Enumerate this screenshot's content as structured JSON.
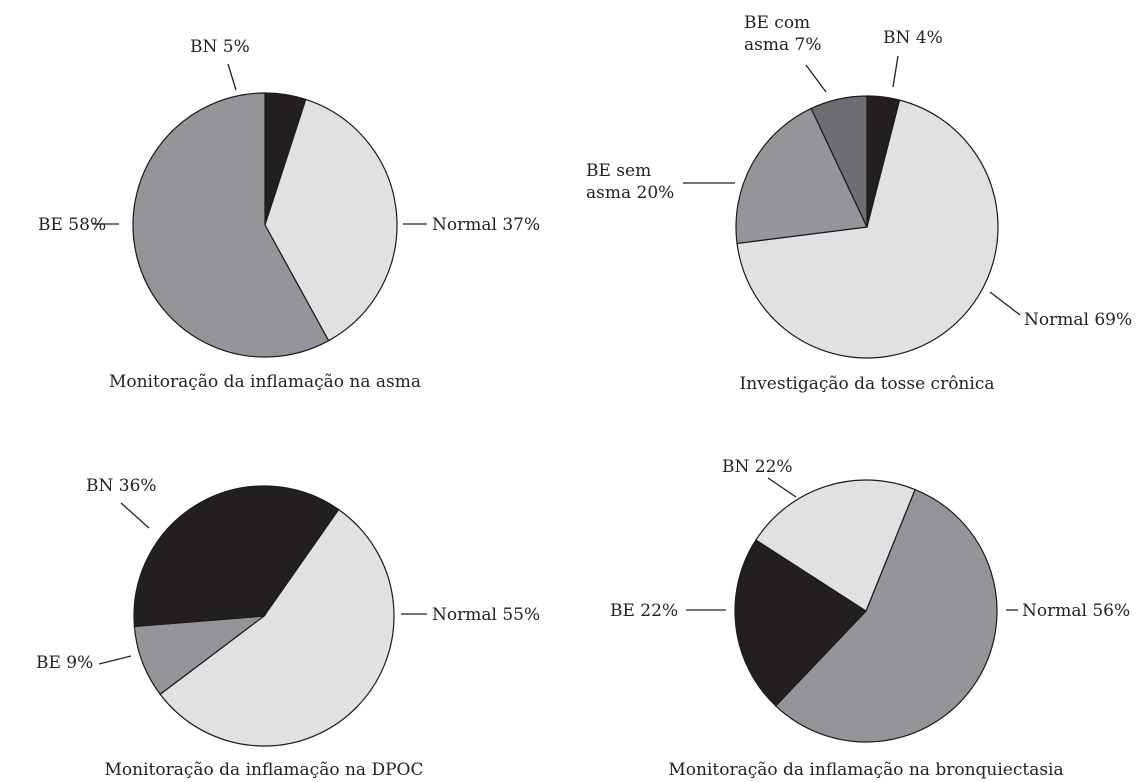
{
  "chart_data": [
    {
      "type": "pie",
      "title": "Monitoração da inflamação na asma",
      "slices": [
        {
          "label": "BN 5%",
          "value": 5,
          "color": "#231f20"
        },
        {
          "label": "Normal 37%",
          "value": 37,
          "color": "#e0e1e3"
        },
        {
          "label": "BE 58%",
          "value": 58,
          "color": "#939598"
        }
      ]
    },
    {
      "type": "pie",
      "title": "Investigação da tosse crônica",
      "slices": [
        {
          "label": "BN 4%",
          "value": 4,
          "color": "#231f20"
        },
        {
          "label": "Normal 69%",
          "value": 69,
          "color": "#e0e1e3"
        },
        {
          "label": "BE sem\nasma 20%",
          "value": 20,
          "color": "#939598"
        },
        {
          "label": "BE com\nasma 7%",
          "value": 7,
          "color": "#6d6e71"
        }
      ]
    },
    {
      "type": "pie",
      "title": "Monitoração da inflamação na DPOC",
      "slices": [
        {
          "label": "Normal 55%",
          "value": 55,
          "color": "#e0e1e3"
        },
        {
          "label": "BE 9%",
          "value": 9,
          "color": "#939598"
        },
        {
          "label": "BN 36%",
          "value": 36,
          "color": "#231f20"
        }
      ]
    },
    {
      "type": "pie",
      "title": "Monitoração da inflamação na bronquiectasia",
      "slices": [
        {
          "label": "Normal 56%",
          "value": 56,
          "color": "#939598"
        },
        {
          "label": "BE 22%",
          "value": 22,
          "color": "#231f20"
        },
        {
          "label": "BN 22%",
          "value": 22,
          "color": "#e0e1e3"
        }
      ]
    }
  ]
}
